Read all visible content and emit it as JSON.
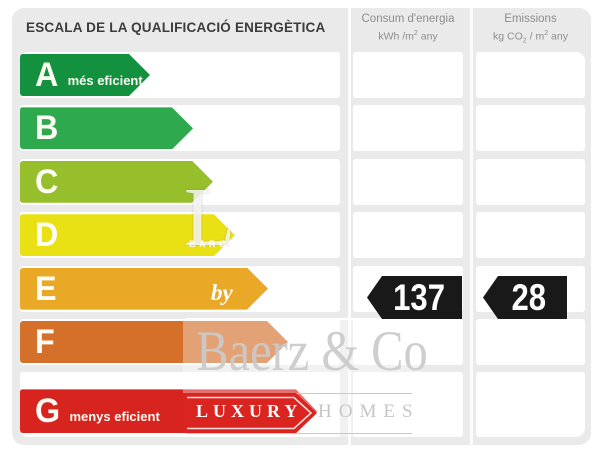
{
  "chart_data": {
    "type": "rating-scale-bar",
    "title": "ESCALA DE LA QUALIFICACIÓ ENERGÈTICA",
    "columns": [
      {
        "title": "Consum d'energia",
        "unit": {
          "pre": "kWh /m",
          "sup": "2",
          "post": " any"
        }
      },
      {
        "title": "Emissions",
        "unit": {
          "pre": "kg CO",
          "sub": "2",
          "mid": " / m",
          "sup": "2",
          "post": " any"
        }
      }
    ],
    "ratings": [
      {
        "letter": "A",
        "label": "més eficient",
        "color": "#13913f",
        "tip": 150
      },
      {
        "letter": "B",
        "label": "",
        "color": "#2fa94d",
        "tip": 193
      },
      {
        "letter": "C",
        "label": "",
        "color": "#97bf2c",
        "tip": 213
      },
      {
        "letter": "D",
        "label": "",
        "color": "#eae114",
        "tip": 235
      },
      {
        "letter": "E",
        "label": "",
        "color": "#e9a825",
        "tip": 268
      },
      {
        "letter": "F",
        "label": "",
        "color": "#d5702b",
        "tip": 288
      },
      {
        "letter": "G",
        "label": "menys eficient",
        "color": "#d8241f",
        "tip": 317
      }
    ],
    "selected_class": "E",
    "values": {
      "consum": "137",
      "emissions": "28"
    },
    "value_arrow_color": "#191919",
    "layout": {
      "legend_position": "none",
      "grid": "off",
      "panel_bg": "#eaeaea"
    }
  },
  "watermark": {
    "ghost_letter": "L",
    "city": "BARCELONA",
    "by": "by",
    "brand": "Baerz & Co",
    "banner_left": "LUXURY",
    "banner_right": "HOMES",
    "banner_red": "#da241f"
  }
}
